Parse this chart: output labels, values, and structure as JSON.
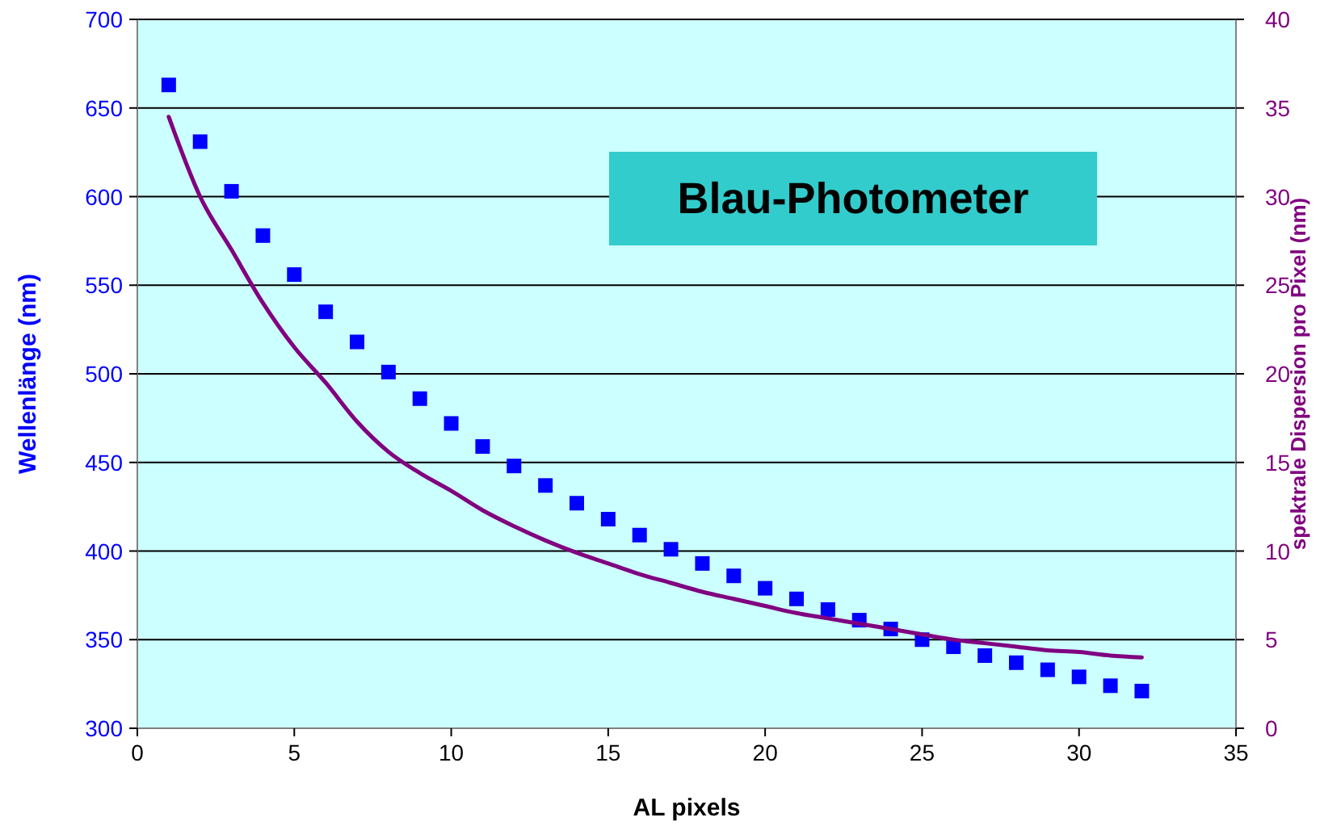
{
  "chart_data": {
    "type": "scatter",
    "title": "Blau-Photometer",
    "xlabel": "AL pixels",
    "ylabel": "Wellenlänge (nm)",
    "y2label": "spektrale Dispersion pro Pixel (nm)",
    "x": [
      1,
      2,
      3,
      4,
      5,
      6,
      7,
      8,
      9,
      10,
      11,
      12,
      13,
      14,
      15,
      16,
      17,
      18,
      19,
      20,
      21,
      22,
      23,
      24,
      25,
      26,
      27,
      28,
      29,
      30,
      31,
      32
    ],
    "series": [
      {
        "color": "#0000ff",
        "marker": "square",
        "values": [
          663,
          631,
          603,
          578,
          556,
          535,
          518,
          501,
          486,
          472,
          459,
          448,
          437,
          427,
          418,
          409,
          401,
          393,
          386,
          379,
          373,
          367,
          361,
          356,
          350,
          346,
          341,
          337,
          333,
          329,
          324,
          321
        ]
      },
      {
        "type": "line",
        "axis": "y2",
        "color": "#800080",
        "line_style": "solid",
        "values": [
          34.5,
          30,
          27,
          24,
          21.5,
          19.5,
          17.3,
          15.6,
          14.4,
          13.4,
          12.3,
          11.4,
          10.6,
          9.9,
          9.3,
          8.7,
          8.2,
          7.7,
          7.3,
          6.9,
          6.5,
          6.2,
          5.9,
          5.6,
          5.3,
          5.0,
          4.8,
          4.6,
          4.4,
          4.3,
          4.1,
          4.0
        ]
      }
    ],
    "xlim": [
      0,
      35
    ],
    "xticks": [
      0,
      5,
      10,
      15,
      20,
      25,
      30,
      35
    ],
    "ylim": [
      300,
      700
    ],
    "yticks": [
      300,
      350,
      400,
      450,
      500,
      550,
      600,
      650,
      700
    ],
    "y2lim": [
      0,
      40
    ],
    "y2ticks": [
      0,
      5,
      10,
      15,
      20,
      25,
      30,
      35,
      40
    ],
    "grid": "y"
  }
}
